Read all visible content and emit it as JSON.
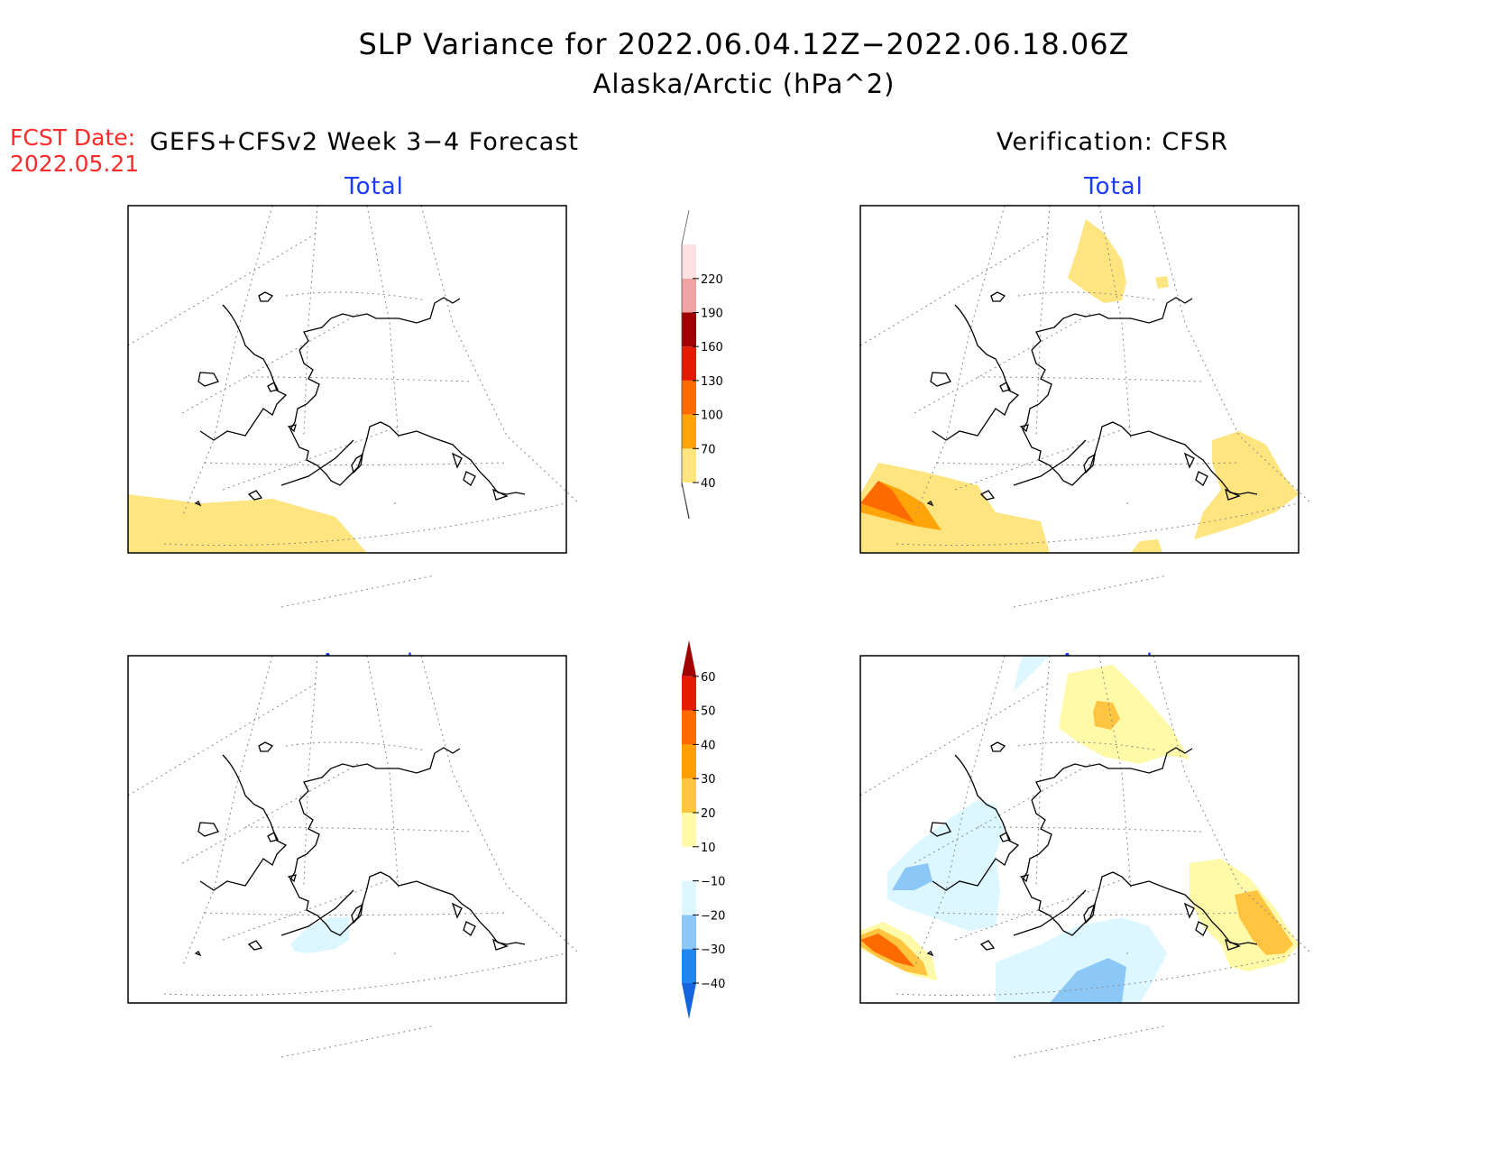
{
  "title": {
    "line1": "SLP Variance for 2022.06.04.12Z−2022.06.18.06Z",
    "line2": "Alaska/Arctic (hPa^2)"
  },
  "forecast": {
    "label": "FCST Date:",
    "date": "2022.05.21"
  },
  "left_header": "GEFS+CFSv2 Week 3−4 Forecast",
  "right_header": "Verification: CFSR",
  "panels": {
    "top_left": "Total",
    "top_right": "Total",
    "bottom_left": "Anomaly",
    "bottom_right": "Anomaly"
  },
  "colorbar_total": {
    "labels": [
      "40",
      "70",
      "100",
      "130",
      "160",
      "190",
      "220"
    ],
    "colors": [
      "#ffe57f",
      "#ffa50a",
      "#ff6a00",
      "#e41b00",
      "#a00000",
      "#f0a3a3",
      "#fde0e0"
    ]
  },
  "colorbar_anomaly": {
    "labels": [
      "−40",
      "−30",
      "−20",
      "−10",
      "10",
      "20",
      "30",
      "40",
      "50",
      "60"
    ],
    "colors": [
      "#1565e0",
      "#1f86f0",
      "#8cc8f7",
      "#dcf7ff",
      "#ffffff",
      "#fffaa8",
      "#ffc440",
      "#ffa000",
      "#ff6a00",
      "#e41b00",
      "#a00000"
    ]
  },
  "shading_colors": {
    "light_yellow": "#ffe57f",
    "orange": "#ffa50a",
    "dark_orange": "#ff6a00",
    "pale_yellow": "#fffaa8",
    "pale_blue": "#dcf7ff",
    "light_blue": "#a8d6f7"
  }
}
